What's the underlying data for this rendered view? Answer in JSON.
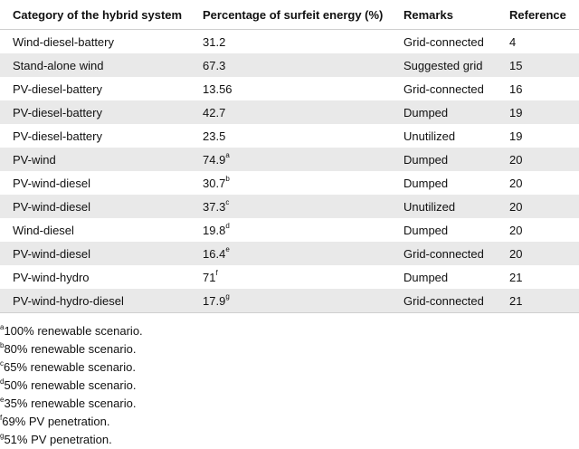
{
  "table": {
    "headers": [
      "Category of the hybrid system",
      "Percentage of surfeit energy (%)",
      "Remarks",
      "Reference"
    ],
    "rows": [
      {
        "category": "Wind-diesel-battery",
        "value": "31.2",
        "mark": "",
        "remarks": "Grid-connected",
        "reference": "4"
      },
      {
        "category": "Stand-alone wind",
        "value": "67.3",
        "mark": "",
        "remarks": "Suggested grid",
        "reference": "15"
      },
      {
        "category": "PV-diesel-battery",
        "value": "13.56",
        "mark": "",
        "remarks": "Grid-connected",
        "reference": "16"
      },
      {
        "category": "PV-diesel-battery",
        "value": "42.7",
        "mark": "",
        "remarks": "Dumped",
        "reference": "19"
      },
      {
        "category": "PV-diesel-battery",
        "value": "23.5",
        "mark": "",
        "remarks": "Unutilized",
        "reference": "19"
      },
      {
        "category": "PV-wind",
        "value": "74.9",
        "mark": "a",
        "remarks": "Dumped",
        "reference": "20"
      },
      {
        "category": "PV-wind-diesel",
        "value": "30.7",
        "mark": "b",
        "remarks": "Dumped",
        "reference": "20"
      },
      {
        "category": "PV-wind-diesel",
        "value": "37.3",
        "mark": "c",
        "remarks": "Unutilized",
        "reference": "20"
      },
      {
        "category": "Wind-diesel",
        "value": "19.8",
        "mark": "d",
        "remarks": "Dumped",
        "reference": "20"
      },
      {
        "category": "PV-wind-diesel",
        "value": "16.4",
        "mark": "e",
        "remarks": "Grid-connected",
        "reference": "20"
      },
      {
        "category": "PV-wind-hydro",
        "value": "71",
        "mark": "f",
        "remarks": "Dumped",
        "reference": "21"
      },
      {
        "category": "PV-wind-hydro-diesel",
        "value": "17.9",
        "mark": "g",
        "remarks": "Grid-connected",
        "reference": "21"
      }
    ]
  },
  "footnotes": [
    {
      "mark": "a",
      "text": "100% renewable scenario."
    },
    {
      "mark": "b",
      "text": "80% renewable scenario."
    },
    {
      "mark": "c",
      "text": "65% renewable scenario."
    },
    {
      "mark": "d",
      "text": "50% renewable scenario."
    },
    {
      "mark": "e",
      "text": "35% renewable scenario."
    },
    {
      "mark": "f",
      "text": "69% PV penetration."
    },
    {
      "mark": "g",
      "text": "51% PV penetration."
    }
  ]
}
